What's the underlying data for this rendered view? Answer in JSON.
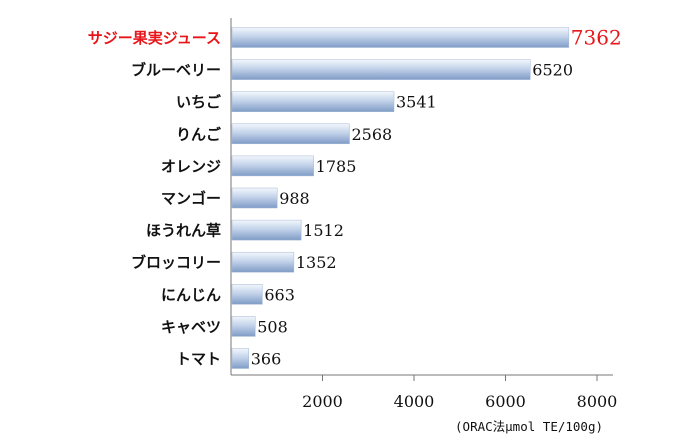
{
  "chart_data": {
    "type": "bar",
    "orientation": "horizontal",
    "categories": [
      "サジー果実ジュース",
      "ブルーベリー",
      "いちご",
      "りんご",
      "オレンジ",
      "マンゴー",
      "ほうれん草",
      "ブロッコリー",
      "にんじん",
      "キャベツ",
      "トマト"
    ],
    "values": [
      7362,
      6520,
      3541,
      2568,
      1785,
      988,
      1512,
      1352,
      663,
      508,
      366
    ],
    "value_labels": [
      "7362",
      "6520",
      "3541",
      "2568",
      "1785",
      "988",
      "1512",
      "1352",
      "663",
      "508",
      "366"
    ],
    "highlight_index": 0,
    "xlim": [
      0,
      8000
    ],
    "xticks": [
      2000,
      4000,
      6000,
      8000
    ],
    "xtick_labels": [
      "2000",
      "4000",
      "6000",
      "8000"
    ],
    "unit_label": "(ORAC法μmol TE/100g)",
    "title": "",
    "xlabel": "",
    "ylabel": "",
    "grid": false,
    "colors": {
      "highlight_text": "#e8161b",
      "bar_dark": "#7f9cc6",
      "bar_light": "#f3f7fc",
      "axis": "#777777"
    }
  }
}
